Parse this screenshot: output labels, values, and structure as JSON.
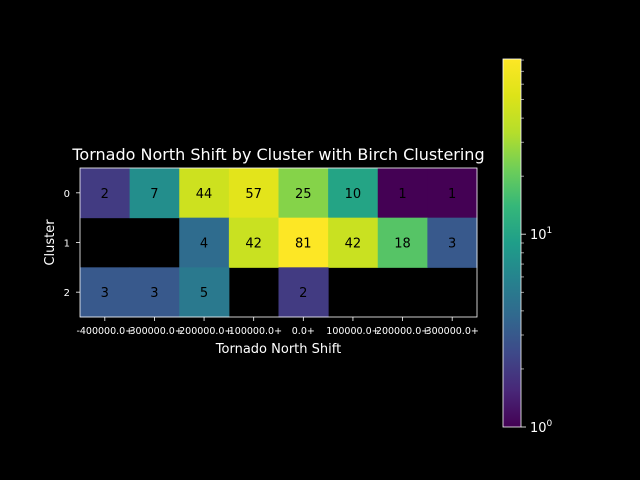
{
  "chart_data": {
    "type": "heatmap",
    "title": "Tornado North Shift by Cluster with Birch Clustering",
    "xlabel": "Tornado North Shift",
    "ylabel": "Cluster",
    "x_categories": [
      "-400000.0+",
      "-300000.0+",
      "-200000.0+",
      "-100000.0+",
      "0.0+",
      "100000.0+",
      "200000.0+",
      "300000.0+"
    ],
    "y_categories": [
      "0",
      "1",
      "2"
    ],
    "values": [
      [
        2,
        7,
        44,
        57,
        25,
        10,
        1,
        1
      ],
      [
        null,
        null,
        4,
        42,
        81,
        42,
        18,
        3
      ],
      [
        3,
        3,
        5,
        null,
        2,
        null,
        null,
        null
      ]
    ],
    "colorbar": {
      "scale": "log",
      "min": 1,
      "max": 81,
      "colormap": "viridis",
      "tick_labels": [
        {
          "value": 1,
          "base": "10",
          "exp": "0"
        },
        {
          "value": 10,
          "base": "10",
          "exp": "1"
        }
      ]
    },
    "background": "#000000",
    "text_color": "#ffffff"
  }
}
